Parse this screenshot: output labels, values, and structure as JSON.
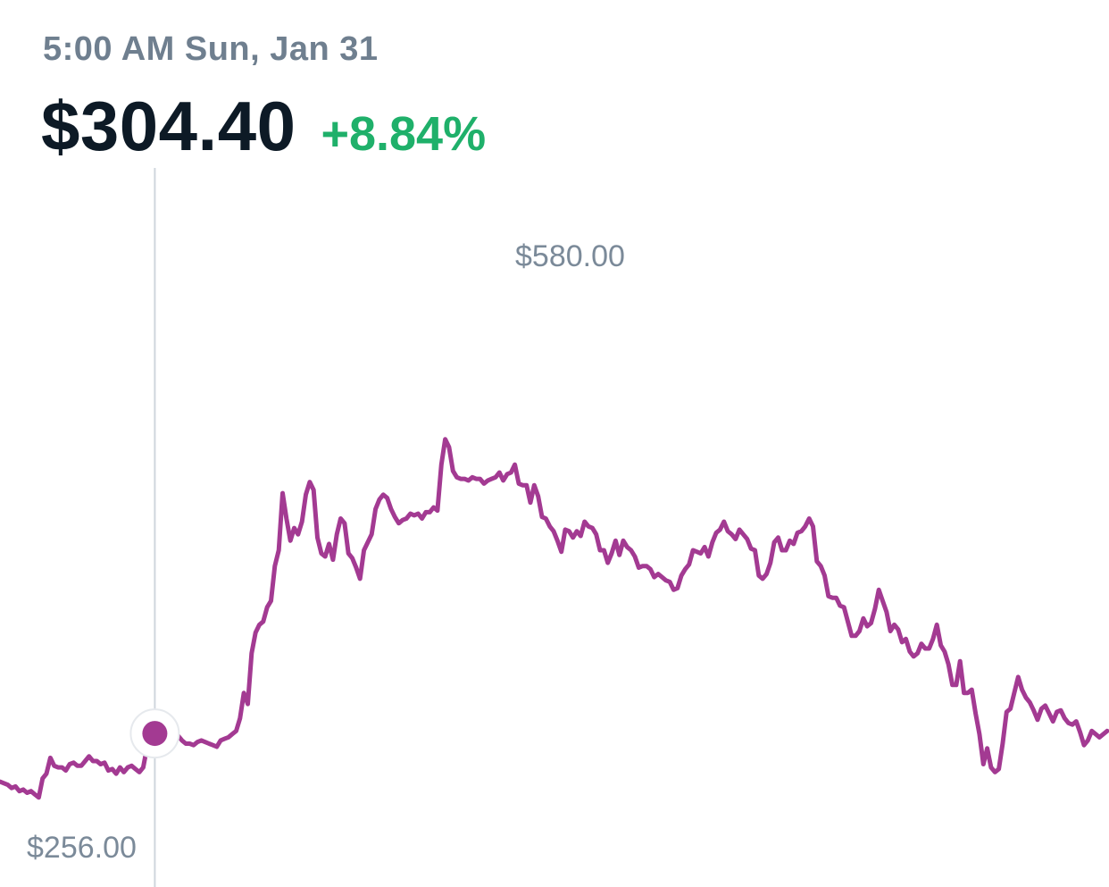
{
  "header": {
    "timestamp": "5:00 AM Sun, Jan 31",
    "price": "$304.40",
    "change": "+8.84%"
  },
  "colors": {
    "line": "#a33a92",
    "cursor": "#cfd6dd",
    "positive": "#1fb06a",
    "label": "#7b8a99"
  },
  "chart_data": {
    "type": "line",
    "title": "",
    "xlabel": "",
    "ylabel": "",
    "high_label": "$580.00",
    "low_label": "$256.00",
    "ylim": [
      256,
      580
    ],
    "cursor_index": 40,
    "cursor_value": 304.4,
    "series": [
      {
        "name": "",
        "values": [
          274,
          273,
          272,
          270,
          271,
          268,
          269,
          267,
          268,
          266,
          264,
          276,
          279,
          289,
          284,
          283,
          283,
          281,
          285,
          286,
          284,
          284,
          287,
          290,
          287,
          287,
          285,
          286,
          281,
          282,
          279,
          283,
          280,
          283,
          284,
          282,
          280,
          283,
          296,
          304,
          304.4,
          303,
          303,
          301,
          302,
          302,
          303,
          300,
          298,
          298,
          297,
          299,
          300,
          299,
          298,
          297,
          296,
          300,
          301,
          302,
          304,
          306,
          314,
          330,
          323,
          355,
          368,
          373,
          375,
          384,
          388,
          410,
          420,
          456,
          440,
          426,
          434,
          430,
          438,
          455,
          463,
          458,
          428,
          418,
          416,
          424,
          414,
          430,
          440,
          437,
          418,
          415,
          409,
          402,
          420,
          425,
          430,
          446,
          452,
          455,
          453,
          446,
          441,
          437,
          439,
          440,
          443,
          442,
          443,
          440,
          444,
          444,
          447,
          445,
          474,
          490,
          485,
          470,
          466,
          465,
          465,
          464,
          466,
          465,
          465,
          462,
          464,
          465,
          466,
          469,
          464,
          468,
          469,
          474,
          462,
          461,
          461,
          450,
          461,
          454,
          441,
          440,
          435,
          432,
          426,
          419,
          433,
          432,
          428,
          432,
          429,
          438,
          435,
          434,
          430,
          420,
          420,
          412,
          418,
          426,
          417,
          426,
          422,
          420,
          416,
          409,
          410,
          410,
          408,
          403,
          405,
          403,
          401,
          400,
          395,
          396,
          404,
          408,
          411,
          420,
          419,
          418,
          422,
          416,
          425,
          431,
          433,
          438,
          432,
          430,
          427,
          433,
          430,
          427,
          421,
          420,
          404,
          402,
          405,
          412,
          425,
          428,
          420,
          420,
          426,
          424,
          431,
          432,
          435,
          440,
          435,
          413,
          410,
          404,
          391,
          390,
          390,
          385,
          384,
          375,
          366,
          366,
          369,
          377,
          372,
          374,
          383,
          395,
          388,
          381,
          369,
          373,
          370,
          362,
          364,
          356,
          353,
          355,
          361,
          358,
          358,
          364,
          373,
          360,
          356,
          348,
          335,
          335,
          350,
          330,
          330,
          332,
          317,
          304,
          285,
          295,
          283,
          280,
          282,
          298,
          318,
          320,
          330,
          340,
          332,
          327,
          324,
          319,
          313,
          320,
          322,
          317,
          312,
          318,
          319,
          314,
          311,
          310,
          312,
          305,
          297,
          300,
          306,
          304,
          302,
          304,
          306
        ]
      }
    ]
  }
}
